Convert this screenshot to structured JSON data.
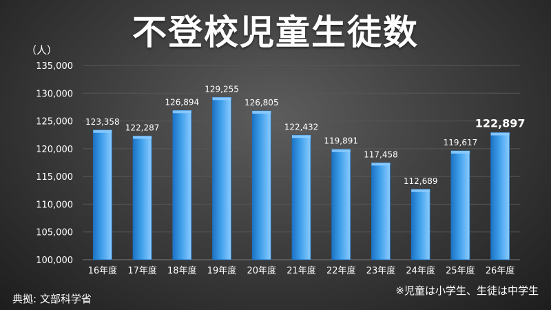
{
  "page": {
    "title": "不登校児童生徒数",
    "source": "典拠: 文部科学省",
    "note": "※児童は小学生、生徒は中学生"
  },
  "chart_data": {
    "type": "bar",
    "title": "不登校児童生徒数",
    "unit_label": "（人）",
    "xlabel": "",
    "ylabel": "",
    "categories": [
      "16年度",
      "17年度",
      "18年度",
      "19年度",
      "20年度",
      "21年度",
      "22年度",
      "23年度",
      "24年度",
      "25年度",
      "26年度"
    ],
    "values": [
      123358,
      122287,
      126894,
      129255,
      126805,
      122432,
      119891,
      117458,
      112689,
      119617,
      122897
    ],
    "value_labels": [
      "123,358",
      "122,287",
      "126,894",
      "129,255",
      "126,805",
      "122,432",
      "119,891",
      "117,458",
      "112,689",
      "119,617",
      "122,897"
    ],
    "ylim": [
      100000,
      135000
    ],
    "yticks": [
      100000,
      105000,
      110000,
      115000,
      120000,
      125000,
      130000,
      135000
    ],
    "ytick_labels": [
      "100,000",
      "105,000",
      "110,000",
      "115,000",
      "120,000",
      "125,000",
      "130,000",
      "135,000"
    ],
    "grid": true,
    "legend": "none",
    "highlight_index": 10,
    "colors": {
      "bar": "#3f9fea",
      "bar_dark": "#1c72c4",
      "bar_light": "#8bcbff",
      "text": "#ffffff",
      "grid": "#575757"
    }
  }
}
